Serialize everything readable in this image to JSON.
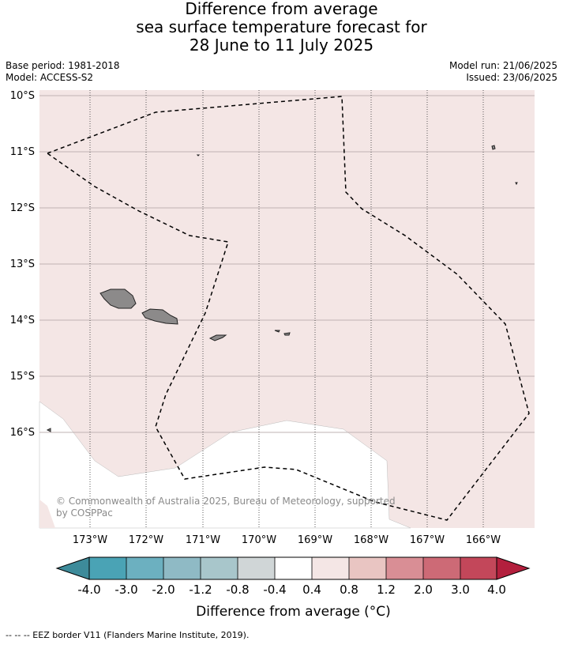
{
  "title": {
    "line1": "Difference from average",
    "line2": "sea surface temperature forecast for",
    "line3": "28 June to 11 July 2025"
  },
  "meta": {
    "base_period": "Base period: 1981-2018",
    "model": "Model: ACCESS-S2",
    "model_run": "Model run: 21/06/2025",
    "issued": "Issued: 23/06/2025"
  },
  "map": {
    "lat_labels": [
      "10°S",
      "11°S",
      "12°S",
      "13°S",
      "14°S",
      "15°S",
      "16°S"
    ],
    "lon_labels": [
      "173°W",
      "172°W",
      "171°W",
      "170°W",
      "169°W",
      "168°W",
      "167°W",
      "166°W"
    ],
    "copyright_line1": "© Commonwealth of Australia 2025, Bureau of Meteorology, supported",
    "copyright_line2": "by COSPPac",
    "fill_colors": {
      "ocean_anomaly": "#f4e6e5",
      "neutral": "#ffffff",
      "land": "#8c8a8a"
    }
  },
  "colorbar": {
    "label": "Difference from average (°C)",
    "ticks": [
      "-4.0",
      "-3.0",
      "-2.0",
      "-1.2",
      "-0.8",
      "-0.4",
      "0.4",
      "0.8",
      "1.2",
      "2.0",
      "3.0",
      "4.0"
    ],
    "colors": [
      "#3d8b9a",
      "#4aa3b5",
      "#6cb0c0",
      "#8fbac5",
      "#a8c6cb",
      "#d0d6d7",
      "#ffffff",
      "#f4e6e5",
      "#e9c5c2",
      "#d98e95",
      "#cd6a76",
      "#c3475a",
      "#b31f3d"
    ]
  },
  "footer": "-- -- -- EEZ border V11 (Flanders Marine Institute, 2019)."
}
